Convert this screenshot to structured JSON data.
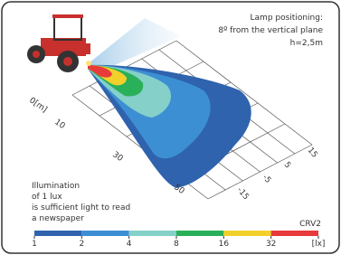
{
  "note_top": {
    "line1": "Lamp positioning:",
    "line2": "8º from the vertical plane",
    "line3": "h=2,5m"
  },
  "depth_labels": [
    "0[m]",
    "10",
    "30",
    "50"
  ],
  "lateral_labels": [
    "15",
    "5",
    "-5",
    "-15"
  ],
  "note_bottom": {
    "line1": "Illumination",
    "line2": "of 1 lux",
    "line3": "is sufficient light to read",
    "line4": "a newspaper"
  },
  "model": "CRV2",
  "scale_labels": [
    "1",
    "2",
    "4",
    "8",
    "16",
    "32",
    "[lx]"
  ]
}
